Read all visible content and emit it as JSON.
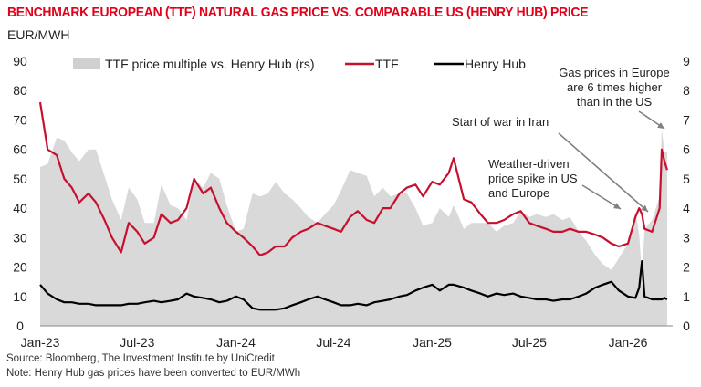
{
  "chart_data": {
    "type": "line",
    "title": "BENCHMARK EUROPEAN (TTF) NATURAL GAS PRICE VS. COMPARABLE US (HENRY HUB) PRICE",
    "ylabel": "EUR/MWH",
    "ylim": [
      0,
      90
    ],
    "y2lim": [
      0,
      9
    ],
    "yticks": [
      "0",
      "10",
      "20",
      "30",
      "40",
      "50",
      "60",
      "70",
      "80",
      "90"
    ],
    "y2ticks": [
      "0",
      "1",
      "2",
      "3",
      "4",
      "5",
      "6",
      "7",
      "8",
      "9"
    ],
    "xticks": [
      {
        "label": "Jan-23",
        "date": "2023-01-01"
      },
      {
        "label": "Jul-23",
        "date": "2023-07-01"
      },
      {
        "label": "Jan-24",
        "date": "2024-01-01"
      },
      {
        "label": "Jul-24",
        "date": "2024-07-01"
      },
      {
        "label": "Jan-25",
        "date": "2025-01-01"
      },
      {
        "label": "Jul-25",
        "date": "2025-07-01"
      },
      {
        "label": "Jan-26",
        "date": "2026-01-01"
      }
    ],
    "grid": false,
    "legend_position": "top",
    "x": [
      "2023-01-01",
      "2023-01-15",
      "2023-02-01",
      "2023-02-15",
      "2023-03-01",
      "2023-03-15",
      "2023-04-01",
      "2023-04-15",
      "2023-05-01",
      "2023-05-15",
      "2023-06-01",
      "2023-06-15",
      "2023-07-01",
      "2023-07-15",
      "2023-08-01",
      "2023-08-15",
      "2023-09-01",
      "2023-09-15",
      "2023-10-01",
      "2023-10-15",
      "2023-11-01",
      "2023-11-15",
      "2023-12-01",
      "2023-12-15",
      "2024-01-01",
      "2024-01-15",
      "2024-02-01",
      "2024-02-15",
      "2024-03-01",
      "2024-03-15",
      "2024-04-01",
      "2024-04-15",
      "2024-05-01",
      "2024-05-15",
      "2024-06-01",
      "2024-06-15",
      "2024-07-01",
      "2024-07-15",
      "2024-08-01",
      "2024-08-15",
      "2024-09-01",
      "2024-09-15",
      "2024-10-01",
      "2024-10-15",
      "2024-11-01",
      "2024-11-15",
      "2024-12-01",
      "2024-12-15",
      "2025-01-01",
      "2025-01-15",
      "2025-02-01",
      "2025-02-10",
      "2025-03-01",
      "2025-03-15",
      "2025-04-01",
      "2025-04-15",
      "2025-05-01",
      "2025-05-15",
      "2025-06-01",
      "2025-06-15",
      "2025-07-01",
      "2025-07-15",
      "2025-08-01",
      "2025-08-15",
      "2025-09-01",
      "2025-09-15",
      "2025-10-01",
      "2025-10-15",
      "2025-11-01",
      "2025-11-15",
      "2025-12-01",
      "2025-12-15",
      "2026-01-01",
      "2026-01-15",
      "2026-01-22",
      "2026-01-27",
      "2026-02-01",
      "2026-02-15",
      "2026-03-01",
      "2026-03-05",
      "2026-03-10",
      "2026-03-15"
    ],
    "series": [
      {
        "name": "TTF price multiple vs. Henry Hub (rs)",
        "axis": "right",
        "kind": "area",
        "color": "#d9d9d9",
        "values": [
          5.4,
          5.5,
          6.4,
          6.3,
          5.9,
          5.6,
          6.0,
          6.0,
          5.1,
          4.3,
          3.6,
          4.7,
          4.3,
          3.5,
          3.5,
          4.8,
          4.1,
          4.0,
          3.6,
          5.0,
          4.7,
          5.2,
          5.0,
          4.1,
          3.2,
          3.3,
          4.5,
          4.4,
          4.5,
          4.9,
          4.5,
          4.3,
          4.0,
          3.7,
          3.5,
          3.8,
          4.1,
          4.6,
          5.3,
          5.2,
          5.1,
          4.4,
          4.7,
          4.4,
          4.5,
          4.5,
          4.0,
          3.4,
          3.5,
          4.0,
          3.7,
          4.1,
          3.3,
          3.5,
          3.5,
          3.5,
          3.2,
          3.4,
          3.5,
          3.9,
          3.7,
          3.8,
          3.7,
          3.8,
          3.6,
          3.7,
          3.2,
          2.9,
          2.4,
          2.1,
          1.9,
          2.3,
          2.8,
          3.9,
          3.1,
          1.7,
          3.3,
          3.6,
          4.4,
          6.7,
          5.9,
          5.9
        ]
      },
      {
        "name": "TTF",
        "axis": "left",
        "kind": "line",
        "color": "#c8102e",
        "values": [
          76,
          60,
          58,
          50,
          47,
          42,
          45,
          42,
          36,
          30,
          25,
          35,
          32,
          28,
          30,
          38,
          35,
          36,
          40,
          50,
          45,
          47,
          40,
          35,
          32,
          30,
          27,
          24,
          25,
          27,
          27,
          30,
          32,
          33,
          35,
          34,
          33,
          32,
          37,
          39,
          36,
          35,
          40,
          40,
          45,
          47,
          48,
          44,
          49,
          48,
          52,
          57,
          43,
          42,
          38,
          35,
          35,
          36,
          38,
          39,
          35,
          34,
          33,
          32,
          32,
          33,
          32,
          32,
          31,
          30,
          28,
          27,
          28,
          37,
          40,
          38,
          33,
          32,
          40,
          60,
          56,
          53
        ]
      },
      {
        "name": "Henry Hub",
        "axis": "left",
        "kind": "line",
        "color": "#000000",
        "values": [
          14,
          11,
          9,
          8,
          8,
          7.5,
          7.5,
          7,
          7,
          7,
          7,
          7.5,
          7.5,
          8,
          8.5,
          8,
          8.5,
          9,
          11,
          10,
          9.5,
          9,
          8,
          8.5,
          10,
          9,
          6,
          5.5,
          5.5,
          5.5,
          6,
          7,
          8,
          9,
          10,
          9,
          8,
          7,
          7,
          7.5,
          7,
          8,
          8.5,
          9,
          10,
          10.5,
          12,
          13,
          14,
          12,
          14,
          14,
          13,
          12,
          11,
          10,
          11,
          10.5,
          11,
          10,
          9.5,
          9,
          9,
          8.5,
          9,
          9,
          10,
          11,
          13,
          14,
          15,
          12,
          10,
          9.5,
          13,
          22,
          10,
          9,
          9,
          9,
          9.5,
          9
        ]
      }
    ],
    "annotations": [
      {
        "lines": [
          "Gas prices in Europe",
          "are 6 times higher",
          "than in the US"
        ]
      },
      {
        "lines": [
          "Start of war in Iran"
        ]
      },
      {
        "lines": [
          "Weather-driven",
          "price spike in US",
          "and Europe"
        ]
      }
    ]
  },
  "footer": {
    "source": "Source: Bloomberg, The Investment Institute by UniCredit",
    "note": "Note: Henry Hub gas prices have been converted to EUR/MWh"
  }
}
